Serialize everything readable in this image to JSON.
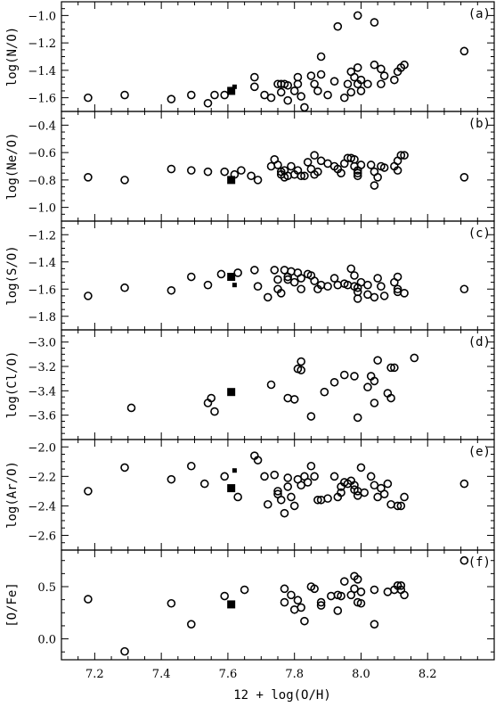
{
  "chart_data": {
    "type": "scatter",
    "xlabel": "12 + log(O/H)",
    "xlim": [
      7.1,
      8.4
    ],
    "xticks": [
      7.2,
      7.4,
      7.6,
      7.8,
      8.0,
      8.2
    ],
    "xtick_labels": [
      "7.2",
      "7.4",
      "7.6",
      "7.8",
      "8.0",
      "8.2"
    ],
    "panels": [
      {
        "label": "(a)",
        "ylabel": "log(N/O)",
        "ylim": [
          -1.7,
          -0.9
        ],
        "yticks": [
          -1.6,
          -1.4,
          -1.2,
          -1.0
        ],
        "ytick_labels": [
          "-1.6",
          "-1.4",
          "-1.2",
          "-1.0"
        ],
        "circles": [
          [
            7.18,
            -1.6
          ],
          [
            7.29,
            -1.58
          ],
          [
            7.43,
            -1.61
          ],
          [
            7.49,
            -1.58
          ],
          [
            7.54,
            -1.64
          ],
          [
            7.56,
            -1.58
          ],
          [
            7.59,
            -1.58
          ],
          [
            7.68,
            -1.45
          ],
          [
            7.68,
            -1.52
          ],
          [
            7.71,
            -1.58
          ],
          [
            7.73,
            -1.6
          ],
          [
            7.75,
            -1.5
          ],
          [
            7.76,
            -1.5
          ],
          [
            7.76,
            -1.56
          ],
          [
            7.77,
            -1.5
          ],
          [
            7.78,
            -1.51
          ],
          [
            7.78,
            -1.62
          ],
          [
            7.8,
            -1.55
          ],
          [
            7.81,
            -1.45
          ],
          [
            7.81,
            -1.5
          ],
          [
            7.82,
            -1.59
          ],
          [
            7.83,
            -1.67
          ],
          [
            7.85,
            -1.44
          ],
          [
            7.86,
            -1.5
          ],
          [
            7.87,
            -1.55
          ],
          [
            7.88,
            -1.43
          ],
          [
            7.88,
            -1.3
          ],
          [
            7.9,
            -1.58
          ],
          [
            7.92,
            -1.48
          ],
          [
            7.93,
            -1.08
          ],
          [
            7.95,
            -1.6
          ],
          [
            7.96,
            -1.5
          ],
          [
            7.97,
            -1.56
          ],
          [
            7.97,
            -1.41
          ],
          [
            7.98,
            -1.45
          ],
          [
            7.99,
            -1.0
          ],
          [
            7.99,
            -1.38
          ],
          [
            7.99,
            -1.5
          ],
          [
            8.0,
            -1.55
          ],
          [
            8.0,
            -1.47
          ],
          [
            8.02,
            -1.5
          ],
          [
            8.04,
            -1.05
          ],
          [
            8.04,
            -1.36
          ],
          [
            8.06,
            -1.5
          ],
          [
            8.06,
            -1.39
          ],
          [
            8.07,
            -1.44
          ],
          [
            8.1,
            -1.47
          ],
          [
            8.11,
            -1.41
          ],
          [
            8.12,
            -1.38
          ],
          [
            8.13,
            -1.36
          ],
          [
            8.31,
            -1.26
          ]
        ],
        "squares": [
          [
            7.61,
            -1.55,
            9
          ]
        ],
        "small_squares": [
          [
            7.62,
            -1.52,
            5
          ]
        ]
      },
      {
        "label": "(b)",
        "ylabel": "log(Ne/O)",
        "ylim": [
          -1.1,
          -0.3
        ],
        "yticks": [
          -1.0,
          -0.8,
          -0.6,
          -0.4
        ],
        "ytick_labels": [
          "-1.0",
          "-0.8",
          "-0.6",
          "-0.4"
        ],
        "circles": [
          [
            7.18,
            -0.78
          ],
          [
            7.29,
            -0.8
          ],
          [
            7.43,
            -0.72
          ],
          [
            7.49,
            -0.73
          ],
          [
            7.54,
            -0.74
          ],
          [
            7.59,
            -0.74
          ],
          [
            7.62,
            -0.76
          ],
          [
            7.64,
            -0.73
          ],
          [
            7.67,
            -0.77
          ],
          [
            7.69,
            -0.8
          ],
          [
            7.73,
            -0.7
          ],
          [
            7.74,
            -0.65
          ],
          [
            7.75,
            -0.69
          ],
          [
            7.76,
            -0.74
          ],
          [
            7.76,
            -0.76
          ],
          [
            7.77,
            -0.73
          ],
          [
            7.77,
            -0.78
          ],
          [
            7.78,
            -0.77
          ],
          [
            7.79,
            -0.7
          ],
          [
            7.8,
            -0.76
          ],
          [
            7.81,
            -0.73
          ],
          [
            7.82,
            -0.77
          ],
          [
            7.83,
            -0.77
          ],
          [
            7.84,
            -0.67
          ],
          [
            7.85,
            -0.72
          ],
          [
            7.86,
            -0.62
          ],
          [
            7.86,
            -0.76
          ],
          [
            7.87,
            -0.74
          ],
          [
            7.88,
            -0.66
          ],
          [
            7.9,
            -0.68
          ],
          [
            7.92,
            -0.7
          ],
          [
            7.93,
            -0.72
          ],
          [
            7.94,
            -0.75
          ],
          [
            7.95,
            -0.68
          ],
          [
            7.96,
            -0.64
          ],
          [
            7.97,
            -0.64
          ],
          [
            7.98,
            -0.65
          ],
          [
            7.98,
            -0.7
          ],
          [
            7.99,
            -0.73
          ],
          [
            7.99,
            -0.75
          ],
          [
            7.99,
            -0.77
          ],
          [
            8.0,
            -0.69
          ],
          [
            8.03,
            -0.69
          ],
          [
            8.04,
            -0.74
          ],
          [
            8.04,
            -0.84
          ],
          [
            8.05,
            -0.78
          ],
          [
            8.06,
            -0.7
          ],
          [
            8.07,
            -0.71
          ],
          [
            8.1,
            -0.7
          ],
          [
            8.11,
            -0.66
          ],
          [
            8.11,
            -0.73
          ],
          [
            8.12,
            -0.62
          ],
          [
            8.13,
            -0.62
          ],
          [
            8.31,
            -0.78
          ]
        ],
        "squares": [
          [
            7.61,
            -0.8,
            9
          ]
        ]
      },
      {
        "label": "(c)",
        "ylabel": "log(S/O)",
        "ylim": [
          -1.9,
          -1.1
        ],
        "yticks": [
          -1.8,
          -1.6,
          -1.4,
          -1.2
        ],
        "ytick_labels": [
          "-1.8",
          "-1.6",
          "-1.4",
          "-1.2"
        ],
        "circles": [
          [
            7.18,
            -1.65
          ],
          [
            7.29,
            -1.59
          ],
          [
            7.43,
            -1.61
          ],
          [
            7.49,
            -1.51
          ],
          [
            7.54,
            -1.57
          ],
          [
            7.58,
            -1.49
          ],
          [
            7.63,
            -1.48
          ],
          [
            7.68,
            -1.46
          ],
          [
            7.69,
            -1.58
          ],
          [
            7.72,
            -1.66
          ],
          [
            7.74,
            -1.46
          ],
          [
            7.75,
            -1.53
          ],
          [
            7.75,
            -1.6
          ],
          [
            7.76,
            -1.63
          ],
          [
            7.77,
            -1.46
          ],
          [
            7.78,
            -1.51
          ],
          [
            7.78,
            -1.53
          ],
          [
            7.79,
            -1.47
          ],
          [
            7.8,
            -1.55
          ],
          [
            7.81,
            -1.48
          ],
          [
            7.82,
            -1.52
          ],
          [
            7.82,
            -1.6
          ],
          [
            7.84,
            -1.49
          ],
          [
            7.85,
            -1.5
          ],
          [
            7.86,
            -1.54
          ],
          [
            7.87,
            -1.6
          ],
          [
            7.88,
            -1.57
          ],
          [
            7.9,
            -1.58
          ],
          [
            7.92,
            -1.52
          ],
          [
            7.93,
            -1.57
          ],
          [
            7.95,
            -1.56
          ],
          [
            7.96,
            -1.57
          ],
          [
            7.97,
            -1.45
          ],
          [
            7.98,
            -1.5
          ],
          [
            7.98,
            -1.58
          ],
          [
            7.99,
            -1.59
          ],
          [
            7.99,
            -1.62
          ],
          [
            7.99,
            -1.67
          ],
          [
            8.0,
            -1.55
          ],
          [
            8.02,
            -1.57
          ],
          [
            8.02,
            -1.64
          ],
          [
            8.04,
            -1.66
          ],
          [
            8.05,
            -1.52
          ],
          [
            8.06,
            -1.58
          ],
          [
            8.07,
            -1.65
          ],
          [
            8.1,
            -1.55
          ],
          [
            8.11,
            -1.6
          ],
          [
            8.11,
            -1.62
          ],
          [
            8.11,
            -1.51
          ],
          [
            8.13,
            -1.63
          ],
          [
            8.31,
            -1.6
          ]
        ],
        "squares": [
          [
            7.61,
            -1.51,
            9
          ]
        ],
        "small_squares": [
          [
            7.62,
            -1.57,
            5
          ]
        ]
      },
      {
        "label": "(d)",
        "ylabel": "log(Cl/O)",
        "ylim": [
          -3.8,
          -2.9
        ],
        "yticks": [
          -3.6,
          -3.4,
          -3.2,
          -3.0
        ],
        "ytick_labels": [
          "-3.6",
          "-3.4",
          "-3.2",
          "-3.0"
        ],
        "circles": [
          [
            7.31,
            -3.54
          ],
          [
            7.54,
            -3.5
          ],
          [
            7.55,
            -3.46
          ],
          [
            7.56,
            -3.57
          ],
          [
            7.73,
            -3.35
          ],
          [
            7.78,
            -3.46
          ],
          [
            7.8,
            -3.47
          ],
          [
            7.81,
            -3.22
          ],
          [
            7.82,
            -3.16
          ],
          [
            7.82,
            -3.23
          ],
          [
            7.85,
            -3.61
          ],
          [
            7.89,
            -3.41
          ],
          [
            7.92,
            -3.33
          ],
          [
            7.95,
            -3.27
          ],
          [
            7.98,
            -3.28
          ],
          [
            7.99,
            -3.62
          ],
          [
            8.02,
            -3.37
          ],
          [
            8.03,
            -3.28
          ],
          [
            8.04,
            -3.32
          ],
          [
            8.04,
            -3.5
          ],
          [
            8.05,
            -3.15
          ],
          [
            8.08,
            -3.42
          ],
          [
            8.09,
            -3.21
          ],
          [
            8.1,
            -3.21
          ],
          [
            8.09,
            -3.46
          ],
          [
            8.16,
            -3.13
          ]
        ],
        "squares": [
          [
            7.61,
            -3.41,
            9
          ]
        ]
      },
      {
        "label": "(e)",
        "ylabel": "log(Ar/O)",
        "ylim": [
          -2.7,
          -1.95
        ],
        "yticks": [
          -2.6,
          -2.4,
          -2.2,
          -2.0
        ],
        "ytick_labels": [
          "-2.6",
          "-2.4",
          "-2.2",
          "-2.0"
        ],
        "circles": [
          [
            7.18,
            -2.3
          ],
          [
            7.29,
            -2.14
          ],
          [
            7.43,
            -2.22
          ],
          [
            7.49,
            -2.13
          ],
          [
            7.53,
            -2.25
          ],
          [
            7.59,
            -2.2
          ],
          [
            7.63,
            -2.34
          ],
          [
            7.68,
            -2.06
          ],
          [
            7.69,
            -2.09
          ],
          [
            7.71,
            -2.2
          ],
          [
            7.72,
            -2.39
          ],
          [
            7.74,
            -2.19
          ],
          [
            7.75,
            -2.32
          ],
          [
            7.75,
            -2.3
          ],
          [
            7.76,
            -2.36
          ],
          [
            7.77,
            -2.45
          ],
          [
            7.78,
            -2.21
          ],
          [
            7.78,
            -2.27
          ],
          [
            7.79,
            -2.34
          ],
          [
            7.8,
            -2.4
          ],
          [
            7.81,
            -2.22
          ],
          [
            7.82,
            -2.26
          ],
          [
            7.83,
            -2.2
          ],
          [
            7.84,
            -2.24
          ],
          [
            7.85,
            -2.13
          ],
          [
            7.86,
            -2.2
          ],
          [
            7.87,
            -2.36
          ],
          [
            7.88,
            -2.36
          ],
          [
            7.9,
            -2.35
          ],
          [
            7.92,
            -2.2
          ],
          [
            7.93,
            -2.34
          ],
          [
            7.94,
            -2.27
          ],
          [
            7.94,
            -2.31
          ],
          [
            7.95,
            -2.24
          ],
          [
            7.96,
            -2.25
          ],
          [
            7.97,
            -2.23
          ],
          [
            7.98,
            -2.26
          ],
          [
            7.98,
            -2.29
          ],
          [
            7.99,
            -2.3
          ],
          [
            7.99,
            -2.33
          ],
          [
            8.0,
            -2.14
          ],
          [
            8.01,
            -2.31
          ],
          [
            8.03,
            -2.2
          ],
          [
            8.04,
            -2.26
          ],
          [
            8.05,
            -2.34
          ],
          [
            8.06,
            -2.28
          ],
          [
            8.07,
            -2.32
          ],
          [
            8.08,
            -2.25
          ],
          [
            8.09,
            -2.39
          ],
          [
            8.11,
            -2.4
          ],
          [
            8.12,
            -2.4
          ],
          [
            8.13,
            -2.34
          ],
          [
            8.31,
            -2.25
          ]
        ],
        "squares": [
          [
            7.61,
            -2.28,
            9
          ]
        ],
        "small_squares": [
          [
            7.62,
            -2.16,
            5
          ]
        ]
      },
      {
        "label": "(f)",
        "ylabel": "[O/Fe]",
        "ylim": [
          -0.2,
          0.85
        ],
        "yticks": [
          0.0,
          0.5
        ],
        "ytick_labels": [
          "0.0",
          "0.5"
        ],
        "circles": [
          [
            7.18,
            0.38
          ],
          [
            7.29,
            -0.12
          ],
          [
            7.43,
            0.34
          ],
          [
            7.49,
            0.14
          ],
          [
            7.59,
            0.41
          ],
          [
            7.65,
            0.47
          ],
          [
            7.77,
            0.48
          ],
          [
            7.77,
            0.35
          ],
          [
            7.79,
            0.42
          ],
          [
            7.8,
            0.28
          ],
          [
            7.81,
            0.37
          ],
          [
            7.82,
            0.3
          ],
          [
            7.83,
            0.17
          ],
          [
            7.85,
            0.5
          ],
          [
            7.86,
            0.48
          ],
          [
            7.88,
            0.35
          ],
          [
            7.88,
            0.32
          ],
          [
            7.91,
            0.41
          ],
          [
            7.93,
            0.42
          ],
          [
            7.93,
            0.27
          ],
          [
            7.94,
            0.41
          ],
          [
            7.95,
            0.55
          ],
          [
            7.97,
            0.42
          ],
          [
            7.98,
            0.48
          ],
          [
            7.98,
            0.6
          ],
          [
            7.99,
            0.57
          ],
          [
            7.99,
            0.35
          ],
          [
            8.0,
            0.34
          ],
          [
            8.0,
            0.45
          ],
          [
            8.04,
            0.47
          ],
          [
            8.04,
            0.14
          ],
          [
            8.08,
            0.45
          ],
          [
            8.1,
            0.47
          ],
          [
            8.11,
            0.51
          ],
          [
            8.12,
            0.51
          ],
          [
            8.12,
            0.47
          ],
          [
            8.13,
            0.42
          ],
          [
            8.31,
            0.75
          ]
        ],
        "squares": [
          [
            7.61,
            0.33,
            9
          ]
        ]
      }
    ]
  }
}
